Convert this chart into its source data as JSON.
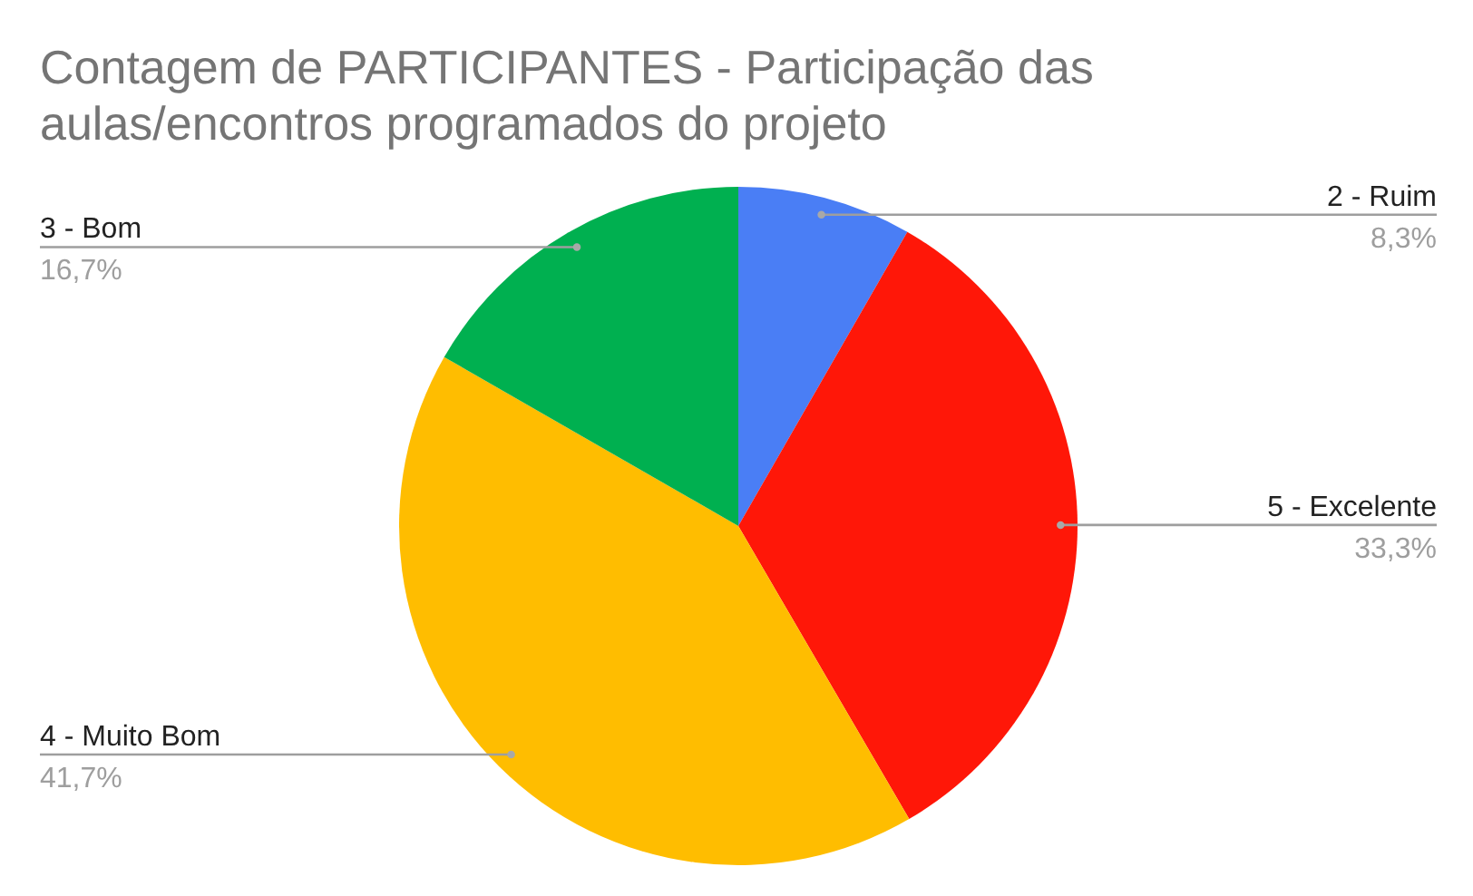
{
  "chart_data": {
    "type": "pie",
    "title": "Contagem de PARTICIPANTES - Participação das aulas/encontros programados do projeto",
    "categories": [
      "2 - Ruim",
      "5 - Excelente",
      "4 - Muito Bom",
      "3 - Bom"
    ],
    "values": [
      8.3,
      33.3,
      41.7,
      16.7
    ],
    "colors": [
      "#4a7ef5",
      "#ff1708",
      "#ffbd00",
      "#00b050"
    ],
    "value_labels": [
      "8,3%",
      "33,3%",
      "41,7%",
      "16,7%"
    ]
  }
}
